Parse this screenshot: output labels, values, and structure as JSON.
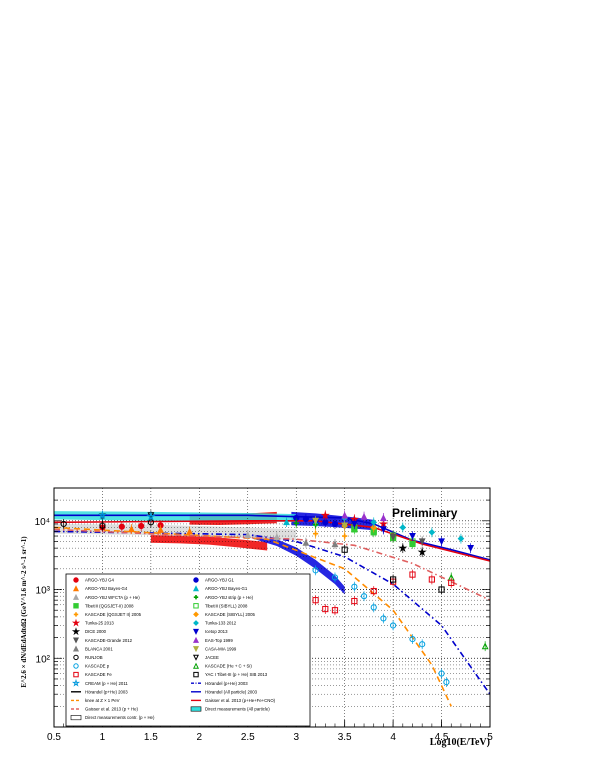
{
  "chart_data": {
    "type": "scatter",
    "annotation": "Preliminary",
    "xlabel": "Log10(E/TeV)",
    "ylabel": "E^2.6 × dN/dEdAdtdΩ (GeV^1.6 m^-2 s^-1 sr^-1)",
    "x_scale": "linear",
    "y_scale": "log",
    "xlim": [
      0.5,
      5.0
    ],
    "ylim": [
      10,
      30000
    ],
    "x_ticks": [
      "0.5",
      "1",
      "1.5",
      "2",
      "2.5",
      "3",
      "3.5",
      "4",
      "4.5",
      "5"
    ],
    "y_ticks": [
      {
        "label": "10²",
        "value": 100
      },
      {
        "label": "10³",
        "value": 1000
      },
      {
        "label": "10⁴",
        "value": 10000
      }
    ],
    "grid": true,
    "legend_position": "bottom-left",
    "series": [
      {
        "name": "ARGO-YBJ G4",
        "marker": "circle",
        "color": "#e3000f",
        "points": [
          [
            1.0,
            8000
          ],
          [
            1.2,
            8200
          ],
          [
            1.4,
            8400
          ],
          [
            1.6,
            8600
          ]
        ]
      },
      {
        "name": "ARGO-YBJ G1",
        "marker": "circle",
        "color": "#0000d0",
        "points": [
          [
            3.0,
            11000
          ],
          [
            3.1,
            10600
          ],
          [
            3.2,
            10000
          ],
          [
            3.3,
            9500
          ],
          [
            3.4,
            9000
          ],
          [
            3.5,
            8600
          ]
        ]
      },
      {
        "name": "ARGO-YBJ Bayes-G4",
        "marker": "triangle",
        "color": "#ff7a00",
        "points": [
          [
            1.3,
            7600
          ],
          [
            1.6,
            7400
          ],
          [
            1.9,
            7000
          ]
        ]
      },
      {
        "name": "ARGO-YBJ Bayes-G1",
        "marker": "triangle",
        "color": "#00b7c9",
        "points": [
          [
            2.9,
            9600
          ],
          [
            3.2,
            9300
          ]
        ]
      },
      {
        "name": "ARGO-YBJ WFCTA (p + He)",
        "marker": "triangle",
        "color": "#a8a8a8",
        "points": [
          [
            2.5,
            6200
          ],
          [
            2.8,
            5800
          ]
        ]
      },
      {
        "name": "ARGO-YBJ strip (p + He)",
        "marker": "cross",
        "color": "#00a000",
        "points": [
          [
            3.0,
            9200
          ],
          [
            3.2,
            8800
          ]
        ]
      },
      {
        "name": "TibetIII (QGSJET-II) 2008",
        "marker": "square",
        "color": "#33cc33",
        "points": [
          [
            3.6,
            7500
          ],
          [
            3.8,
            6800
          ],
          [
            4.0,
            5600
          ],
          [
            4.2,
            4600
          ]
        ]
      },
      {
        "name": "TibetIII (SIBYLL) 2008",
        "marker": "open-square",
        "color": "#33cc33",
        "points": [
          [
            3.6,
            8000
          ],
          [
            3.8,
            7200
          ],
          [
            4.0,
            6100
          ],
          [
            4.2,
            5000
          ]
        ]
      },
      {
        "name": "KASCADE (QGSJET II) 2005",
        "marker": "cross",
        "color": "#ff9900",
        "points": [
          [
            3.2,
            6500
          ],
          [
            3.5,
            6000
          ]
        ]
      },
      {
        "name": "KASCADE (SIBYLL) 2005",
        "marker": "diamond",
        "color": "#ff9900",
        "points": [
          [
            3.5,
            8400
          ],
          [
            3.8,
            8000
          ]
        ]
      },
      {
        "name": "Tunka-25 2013",
        "marker": "star",
        "color": "#e3000f",
        "points": [
          [
            3.3,
            12000
          ],
          [
            3.6,
            10500
          ],
          [
            3.9,
            9000
          ]
        ]
      },
      {
        "name": "Tunka-133 2012",
        "marker": "diamond",
        "color": "#00b7c9",
        "points": [
          [
            3.5,
            11000
          ],
          [
            3.8,
            9500
          ],
          [
            4.1,
            8000
          ],
          [
            4.4,
            6800
          ],
          [
            4.7,
            5500
          ]
        ]
      },
      {
        "name": "DICE 2000",
        "marker": "star",
        "color": "#000000",
        "points": [
          [
            4.1,
            4000
          ],
          [
            4.3,
            3500
          ]
        ]
      },
      {
        "name": "Icetop 2013",
        "marker": "triangle-down",
        "color": "#0000d0",
        "points": [
          [
            3.6,
            9000
          ],
          [
            3.9,
            7500
          ],
          [
            4.2,
            6000
          ],
          [
            4.5,
            5000
          ],
          [
            4.8,
            4000
          ]
        ]
      },
      {
        "name": "KASCADE-Grande 2012",
        "marker": "triangle-down",
        "color": "#555555",
        "points": [
          [
            4.0,
            5800
          ],
          [
            4.3,
            5000
          ]
        ]
      },
      {
        "name": "EAS-Top 1999",
        "marker": "triangle",
        "color": "#9933cc",
        "points": [
          [
            3.5,
            12000
          ],
          [
            3.7,
            11500
          ],
          [
            3.9,
            11000
          ]
        ]
      },
      {
        "name": "BLANCA 2001",
        "marker": "triangle",
        "color": "#808080",
        "points": [
          [
            3.1,
            4800
          ],
          [
            3.4,
            4600
          ]
        ]
      },
      {
        "name": "CASA-MIA 1999",
        "marker": "triangle-down",
        "color": "#b0b040",
        "points": [
          [
            3.2,
            10000
          ],
          [
            3.5,
            8500
          ]
        ]
      },
      {
        "name": "RUNJOB",
        "marker": "open-circle-cross",
        "color": "#000000",
        "points": [
          [
            0.6,
            9000
          ],
          [
            1.0,
            8500
          ],
          [
            1.5,
            9500
          ]
        ]
      },
      {
        "name": "JACEE",
        "marker": "open-triangle-down",
        "color": "#000000",
        "points": [
          [
            1.0,
            11500
          ],
          [
            1.5,
            12000
          ]
        ]
      },
      {
        "name": "KASCADE p",
        "marker": "open-circle",
        "color": "#00a0e0",
        "points": [
          [
            3.2,
            1900
          ],
          [
            3.4,
            1500
          ],
          [
            3.6,
            1100
          ],
          [
            3.7,
            800
          ],
          [
            3.8,
            550
          ],
          [
            3.9,
            380
          ],
          [
            4.0,
            300
          ],
          [
            4.2,
            190
          ],
          [
            4.3,
            160
          ],
          [
            4.5,
            60
          ],
          [
            4.55,
            45
          ]
        ]
      },
      {
        "name": "KASCADE (He + C + Si)",
        "marker": "open-triangle",
        "color": "#00a000",
        "points": [
          [
            4.6,
            1500
          ],
          [
            4.95,
            150
          ]
        ]
      },
      {
        "name": "KASCADE Fe",
        "marker": "open-square",
        "color": "#e3000f",
        "points": [
          [
            3.2,
            700
          ],
          [
            3.3,
            520
          ],
          [
            3.4,
            500
          ],
          [
            3.6,
            680
          ],
          [
            3.8,
            950
          ],
          [
            4.0,
            1300
          ],
          [
            4.2,
            1650
          ],
          [
            4.4,
            1400
          ],
          [
            4.6,
            1250
          ]
        ]
      },
      {
        "name": "YAC I Tibet-III (p + He) SIB 2013",
        "marker": "open-square",
        "color": "#000000",
        "points": [
          [
            3.5,
            3800
          ],
          [
            4.0,
            1400
          ],
          [
            4.5,
            1000
          ]
        ]
      },
      {
        "name": "CREAM (p + He) 2011",
        "marker": "open-star",
        "color": "#0099dd",
        "points": [
          [
            1.0,
            12000
          ],
          [
            1.5,
            11500
          ]
        ]
      }
    ],
    "curves": [
      {
        "name": "Hörandel (p+He) 2003",
        "style": "dash-dot",
        "color": "#0000cc",
        "points": [
          [
            0.5,
            7000
          ],
          [
            2.5,
            6300
          ],
          [
            3.0,
            5000
          ],
          [
            3.5,
            3000
          ],
          [
            4.0,
            1200
          ],
          [
            4.5,
            300
          ],
          [
            5.0,
            30
          ]
        ]
      },
      {
        "name": "Hörandel (All particle) 2003",
        "style": "solid",
        "color": "#0000cc",
        "points": [
          [
            0.5,
            12000
          ],
          [
            2.5,
            12000
          ],
          [
            3.5,
            11000
          ],
          [
            3.8,
            9000
          ],
          [
            4.2,
            5200
          ],
          [
            4.6,
            3800
          ],
          [
            5.0,
            2700
          ]
        ]
      },
      {
        "name": "knee at Z × 1 PeV",
        "style": "dashed",
        "color": "#ff8c00",
        "points": [
          [
            0.5,
            8000
          ],
          [
            2.7,
            5400
          ],
          [
            3.5,
            2000
          ],
          [
            4.0,
            500
          ],
          [
            4.4,
            80
          ],
          [
            4.6,
            20
          ]
        ]
      },
      {
        "name": "Gaisser et al. 2013 (p + He)",
        "style": "dash-dot",
        "color": "#e06060",
        "points": [
          [
            0.5,
            7500
          ],
          [
            2.0,
            6000
          ],
          [
            3.0,
            5400
          ],
          [
            3.6,
            4400
          ],
          [
            4.2,
            2400
          ],
          [
            4.6,
            1300
          ],
          [
            5.0,
            700
          ]
        ]
      },
      {
        "name": "Gaisser et al. 2013 (p+He+Fe+CNO)",
        "style": "solid",
        "color": "#e3000f",
        "points": [
          [
            0.5,
            9500
          ],
          [
            2.5,
            10000
          ],
          [
            3.2,
            10000
          ],
          [
            3.8,
            8000
          ],
          [
            4.3,
            4600
          ],
          [
            5.0,
            2600
          ]
        ]
      }
    ],
    "bands": [
      {
        "name": "ARGO-YBJ G4 (red band)",
        "color": "#ee0000",
        "x": [
          1.5,
          1.8,
          2.1,
          2.4,
          2.7
        ],
        "low": [
          4800,
          4700,
          4500,
          4100,
          3700
        ],
        "high": [
          6300,
          6200,
          5900,
          5400,
          4900
        ]
      },
      {
        "name": "ARGO-YBJ G4 upper band",
        "color": "#ee0000",
        "x": [
          1.9,
          2.2,
          2.5,
          2.8
        ],
        "low": [
          8800,
          8700,
          8900,
          9200
        ],
        "high": [
          12500,
          12600,
          12800,
          13500
        ]
      },
      {
        "name": "ARGO-YBJ G1 (blue band)",
        "color": "#0000dd",
        "x": [
          2.55,
          2.8,
          3.0,
          3.2,
          3.4,
          3.5
        ],
        "low": [
          5500,
          4300,
          3100,
          2000,
          1200,
          850
        ],
        "high": [
          6400,
          5400,
          4100,
          2700,
          1600,
          1100
        ]
      },
      {
        "name": "ARGO-YBJ G1 upper band",
        "color": "#0000dd",
        "x": [
          2.95,
          3.2,
          3.4,
          3.6,
          3.8
        ],
        "low": [
          8600,
          8400,
          8100,
          7700,
          7300
        ],
        "high": [
          13500,
          12800,
          12000,
          11200,
          10300
        ]
      },
      {
        "name": "Direct measurements contr. (p + He)",
        "color": "#d8d8d8",
        "x": [
          0.5,
          1.5,
          2.5,
          3.0
        ],
        "low": [
          6500,
          6200,
          5600,
          5200
        ],
        "high": [
          9000,
          8800,
          8000,
          7500
        ]
      },
      {
        "name": "Direct measurements (All particle)",
        "color": "#33dddd",
        "x": [
          0.5,
          1.5,
          2.5,
          3.0
        ],
        "low": [
          10500,
          10000,
          9800,
          9600
        ],
        "high": [
          13800,
          13500,
          13000,
          12500
        ]
      }
    ],
    "legend": {
      "left": [
        {
          "label": "ARGO-YBJ G4",
          "sym": "circle",
          "color": "#e3000f"
        },
        {
          "label": "ARGO-YBJ Bayes-G4",
          "sym": "triangle",
          "color": "#ff7a00"
        },
        {
          "label": "ARGO-YBJ WFCTA (p + He)",
          "sym": "triangle",
          "color": "#a8a8a8"
        },
        {
          "label": "TibetIII (QGSJET-II) 2008",
          "sym": "square",
          "color": "#33cc33"
        },
        {
          "label": "KASCADE (QGSJET II) 2005",
          "sym": "cross",
          "color": "#ff9900"
        },
        {
          "label": "Tunka-25 2013",
          "sym": "star",
          "color": "#e3000f"
        },
        {
          "label": "DICE 2000",
          "sym": "star",
          "color": "#000000"
        },
        {
          "label": "KASCADE-Grande 2012",
          "sym": "triangle-down",
          "color": "#555555"
        },
        {
          "label": "BLANCA 2001",
          "sym": "triangle",
          "color": "#808080"
        },
        {
          "label": "RUNJOB",
          "sym": "open-circle",
          "color": "#000000"
        },
        {
          "label": "KASCADE p",
          "sym": "open-circle",
          "color": "#00a0e0"
        },
        {
          "label": "KASCADE Fe",
          "sym": "open-square",
          "color": "#e3000f"
        },
        {
          "label": "CREAM (p + He) 2011",
          "sym": "open-star",
          "color": "#0099dd"
        },
        {
          "label": "Hörandel (p+He) 2003",
          "sym": "none",
          "color": "#000000"
        },
        {
          "label": "knee at Z × 1 PeV",
          "sym": "dash",
          "color": "#ff8c00"
        },
        {
          "label": "Gaisser et al. 2013 (p + He)",
          "sym": "dash",
          "color": "#e06060"
        },
        {
          "label": "Direct measurements contr. (p + He)",
          "sym": "box",
          "color": "#ffffff"
        }
      ],
      "right": [
        {
          "label": "ARGO-YBJ G1",
          "sym": "circle",
          "color": "#0000d0"
        },
        {
          "label": "ARGO-YBJ Bayes-G1",
          "sym": "triangle",
          "color": "#00b7c9"
        },
        {
          "label": "ARGO-YBJ strip (p + He)",
          "sym": "cross",
          "color": "#00a000"
        },
        {
          "label": "TibetIII (SIBYLL) 2008",
          "sym": "open-square",
          "color": "#33cc33"
        },
        {
          "label": "KASCADE (SIBYLL) 2005",
          "sym": "diamond",
          "color": "#ff9900"
        },
        {
          "label": "Tunka-133 2012",
          "sym": "diamond",
          "color": "#00b7c9"
        },
        {
          "label": "Icetop 2013",
          "sym": "triangle-down",
          "color": "#0000d0"
        },
        {
          "label": "EAS-Top 1999",
          "sym": "triangle",
          "color": "#9933cc"
        },
        {
          "label": "CASA-MIA 1999",
          "sym": "triangle-down",
          "color": "#b0b040"
        },
        {
          "label": "JACEE",
          "sym": "open-triangle-down",
          "color": "#000000"
        },
        {
          "label": "KASCADE (He + C + Si)",
          "sym": "open-triangle",
          "color": "#00a000"
        },
        {
          "label": "YAC I Tibet-III (p + He) SIB 2013",
          "sym": "open-square",
          "color": "#000000"
        },
        {
          "label": "Hörandel (p+He) 2003",
          "sym": "dashdot",
          "color": "#0000cc"
        },
        {
          "label": "Hörandel (All particle) 2003",
          "sym": "line",
          "color": "#0000cc"
        },
        {
          "label": "Gaisser et al. 2013 (p+He+Fe+CNO)",
          "sym": "line",
          "color": "#e3000f"
        },
        {
          "label": "Direct measurements (All particle)",
          "sym": "box",
          "color": "#33dddd"
        }
      ]
    }
  }
}
